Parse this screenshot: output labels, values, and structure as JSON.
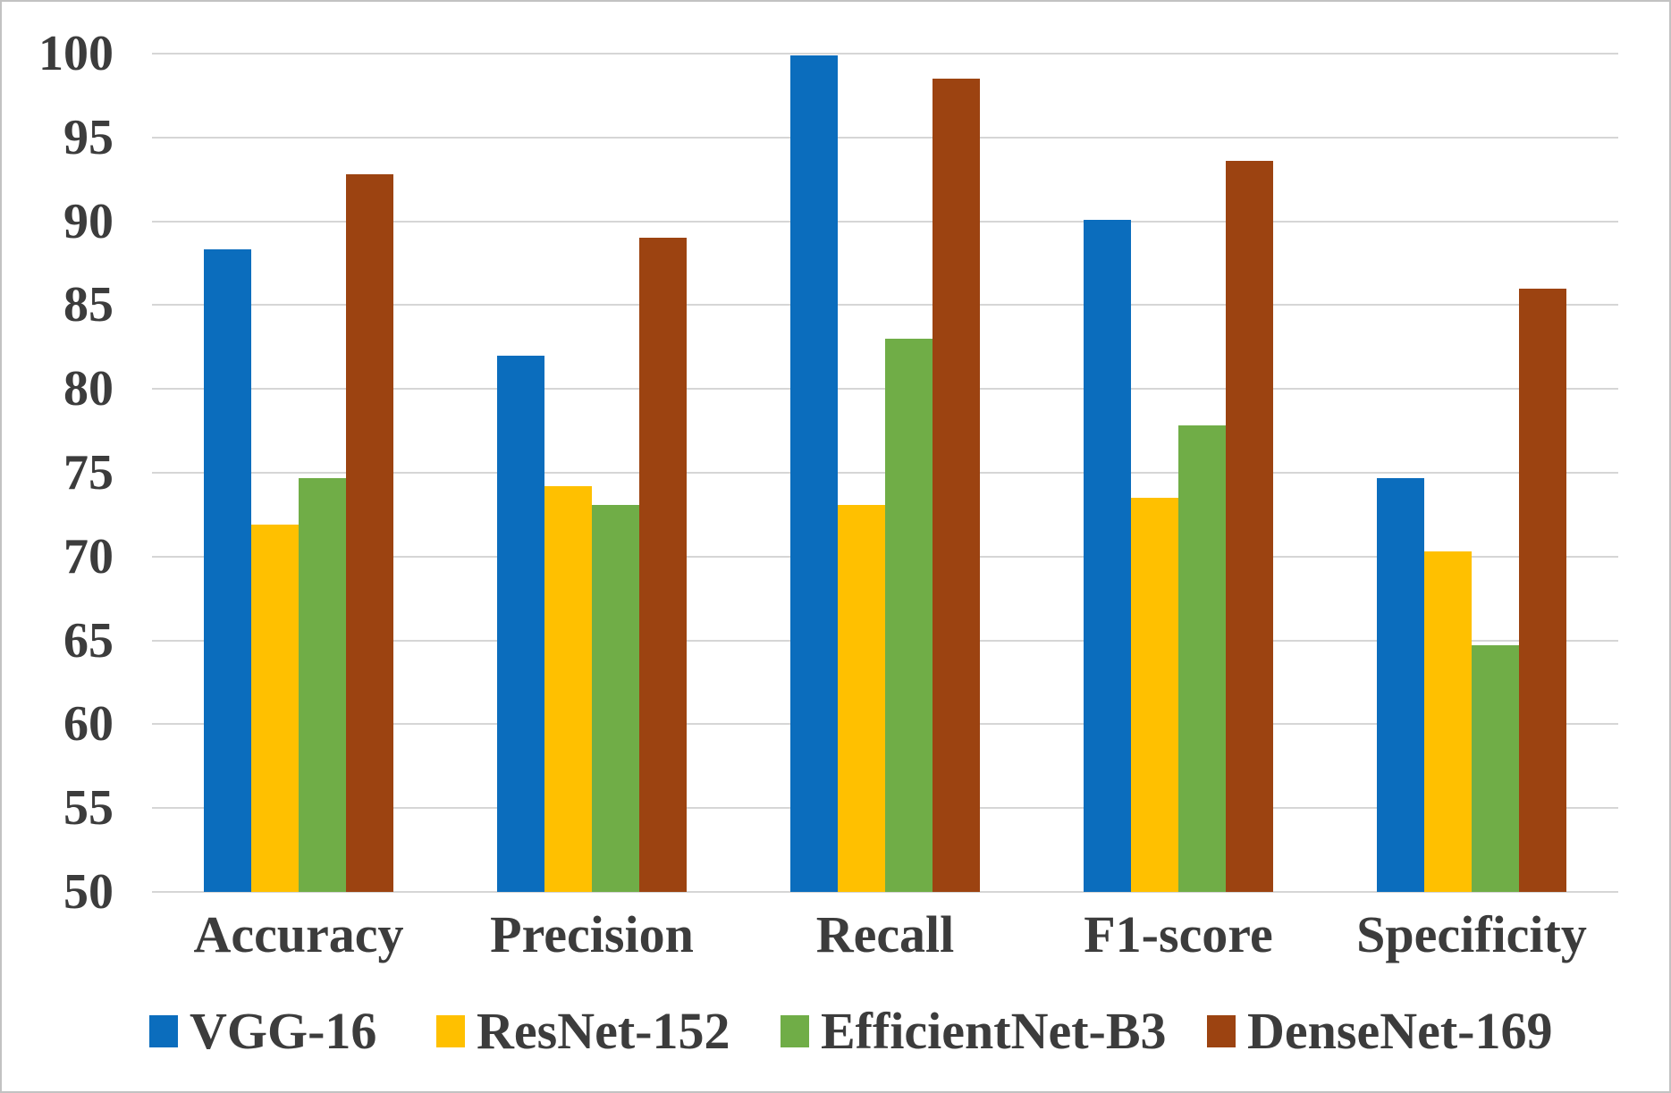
{
  "chart_data": {
    "type": "bar",
    "title": "",
    "xlabel": "",
    "ylabel": "",
    "categories": [
      "Accuracy",
      "Precision",
      "Recall",
      "F1-score",
      "Specificity"
    ],
    "series": [
      {
        "name": "VGG-16",
        "color": "#0B6DBD",
        "values": [
          88.3,
          82.0,
          99.9,
          90.1,
          74.7
        ]
      },
      {
        "name": "ResNet-152",
        "color": "#FFC000",
        "values": [
          71.9,
          74.2,
          73.1,
          73.5,
          70.3
        ]
      },
      {
        "name": "EfficientNet-B3",
        "color": "#70AD47",
        "values": [
          74.7,
          73.1,
          83.0,
          77.8,
          64.7
        ]
      },
      {
        "name": "DenseNet-169",
        "color": "#9C4311",
        "values": [
          92.8,
          89.0,
          98.5,
          93.6,
          86.0
        ]
      }
    ],
    "ylim": [
      50,
      100
    ],
    "ytick_step": 5,
    "yticks": [
      100,
      95,
      90,
      85,
      80,
      75,
      70,
      65,
      60,
      55,
      50
    ],
    "grid": "horizontal",
    "legend_position": "bottom"
  },
  "colors": {
    "background": "#FFFFFF",
    "border": "#C2C2C2",
    "gridline": "#D6D6D6",
    "text": "#3C3C3C"
  }
}
